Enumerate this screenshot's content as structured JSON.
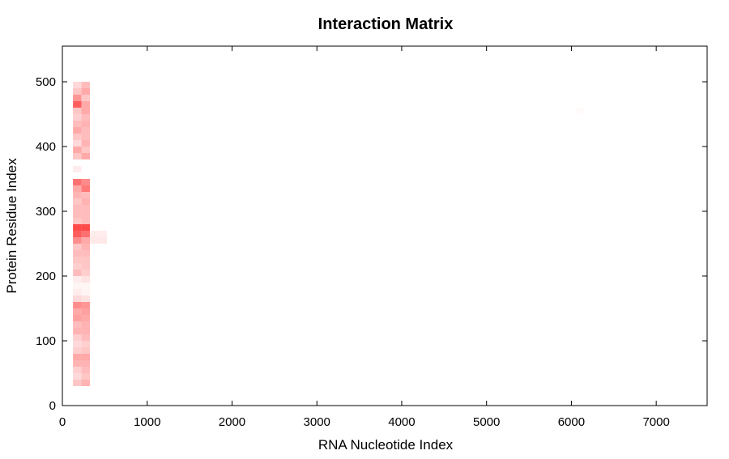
{
  "chart_data": {
    "type": "heatmap",
    "title": "Interaction Matrix",
    "xlabel": "RNA Nucleotide Index",
    "ylabel": "Protein Residue Index",
    "xlim": [
      0,
      7600
    ],
    "ylim": [
      0,
      555
    ],
    "xticks": [
      0,
      1000,
      2000,
      3000,
      4000,
      5000,
      6000,
      7000
    ],
    "yticks": [
      0,
      100,
      200,
      300,
      400,
      500
    ],
    "color_scale": {
      "low": "#ffffff",
      "high": "#ff4040"
    },
    "grid": false,
    "legend": "none",
    "cell_size": {
      "x": 100,
      "y": 10
    },
    "cells": [
      {
        "x": 175,
        "y": 495,
        "v": 0.2
      },
      {
        "x": 275,
        "y": 495,
        "v": 0.35
      },
      {
        "x": 175,
        "y": 485,
        "v": 0.3
      },
      {
        "x": 275,
        "y": 485,
        "v": 0.45
      },
      {
        "x": 175,
        "y": 475,
        "v": 0.55
      },
      {
        "x": 275,
        "y": 475,
        "v": 0.3
      },
      {
        "x": 175,
        "y": 465,
        "v": 0.85
      },
      {
        "x": 275,
        "y": 465,
        "v": 0.45
      },
      {
        "x": 175,
        "y": 455,
        "v": 0.3
      },
      {
        "x": 275,
        "y": 455,
        "v": 0.45
      },
      {
        "x": 175,
        "y": 445,
        "v": 0.25
      },
      {
        "x": 275,
        "y": 445,
        "v": 0.35
      },
      {
        "x": 175,
        "y": 435,
        "v": 0.35
      },
      {
        "x": 275,
        "y": 435,
        "v": 0.4
      },
      {
        "x": 175,
        "y": 425,
        "v": 0.45
      },
      {
        "x": 275,
        "y": 425,
        "v": 0.35
      },
      {
        "x": 175,
        "y": 415,
        "v": 0.3
      },
      {
        "x": 275,
        "y": 415,
        "v": 0.35
      },
      {
        "x": 175,
        "y": 405,
        "v": 0.2
      },
      {
        "x": 275,
        "y": 405,
        "v": 0.4
      },
      {
        "x": 175,
        "y": 395,
        "v": 0.45
      },
      {
        "x": 275,
        "y": 395,
        "v": 0.3
      },
      {
        "x": 175,
        "y": 385,
        "v": 0.3
      },
      {
        "x": 275,
        "y": 385,
        "v": 0.45
      },
      {
        "x": 175,
        "y": 365,
        "v": 0.1
      },
      {
        "x": 175,
        "y": 345,
        "v": 0.75
      },
      {
        "x": 275,
        "y": 345,
        "v": 0.6
      },
      {
        "x": 175,
        "y": 335,
        "v": 0.45
      },
      {
        "x": 275,
        "y": 335,
        "v": 0.7
      },
      {
        "x": 175,
        "y": 325,
        "v": 0.4
      },
      {
        "x": 275,
        "y": 325,
        "v": 0.35
      },
      {
        "x": 175,
        "y": 315,
        "v": 0.3
      },
      {
        "x": 275,
        "y": 315,
        "v": 0.4
      },
      {
        "x": 175,
        "y": 305,
        "v": 0.35
      },
      {
        "x": 275,
        "y": 305,
        "v": 0.35
      },
      {
        "x": 175,
        "y": 295,
        "v": 0.35
      },
      {
        "x": 275,
        "y": 295,
        "v": 0.35
      },
      {
        "x": 175,
        "y": 285,
        "v": 0.3
      },
      {
        "x": 275,
        "y": 285,
        "v": 0.35
      },
      {
        "x": 175,
        "y": 275,
        "v": 0.95
      },
      {
        "x": 275,
        "y": 275,
        "v": 0.95
      },
      {
        "x": 175,
        "y": 265,
        "v": 0.85
      },
      {
        "x": 275,
        "y": 265,
        "v": 0.75
      },
      {
        "x": 175,
        "y": 255,
        "v": 0.6
      },
      {
        "x": 275,
        "y": 255,
        "v": 0.45
      },
      {
        "x": 375,
        "y": 265,
        "v": 0.1
      },
      {
        "x": 475,
        "y": 265,
        "v": 0.1
      },
      {
        "x": 375,
        "y": 255,
        "v": 0.12
      },
      {
        "x": 475,
        "y": 255,
        "v": 0.12
      },
      {
        "x": 175,
        "y": 245,
        "v": 0.3
      },
      {
        "x": 275,
        "y": 245,
        "v": 0.4
      },
      {
        "x": 175,
        "y": 235,
        "v": 0.35
      },
      {
        "x": 275,
        "y": 235,
        "v": 0.35
      },
      {
        "x": 175,
        "y": 225,
        "v": 0.3
      },
      {
        "x": 275,
        "y": 225,
        "v": 0.3
      },
      {
        "x": 175,
        "y": 215,
        "v": 0.25
      },
      {
        "x": 275,
        "y": 215,
        "v": 0.3
      },
      {
        "x": 175,
        "y": 205,
        "v": 0.35
      },
      {
        "x": 275,
        "y": 205,
        "v": 0.25
      },
      {
        "x": 175,
        "y": 195,
        "v": 0.1
      },
      {
        "x": 275,
        "y": 195,
        "v": 0.15
      },
      {
        "x": 175,
        "y": 185,
        "v": 0.05
      },
      {
        "x": 275,
        "y": 185,
        "v": 0.05
      },
      {
        "x": 175,
        "y": 175,
        "v": 0.1
      },
      {
        "x": 275,
        "y": 175,
        "v": 0.05
      },
      {
        "x": 175,
        "y": 165,
        "v": 0.2
      },
      {
        "x": 275,
        "y": 165,
        "v": 0.15
      },
      {
        "x": 175,
        "y": 155,
        "v": 0.6
      },
      {
        "x": 275,
        "y": 155,
        "v": 0.55
      },
      {
        "x": 175,
        "y": 145,
        "v": 0.45
      },
      {
        "x": 275,
        "y": 145,
        "v": 0.5
      },
      {
        "x": 175,
        "y": 135,
        "v": 0.5
      },
      {
        "x": 275,
        "y": 135,
        "v": 0.45
      },
      {
        "x": 175,
        "y": 125,
        "v": 0.35
      },
      {
        "x": 275,
        "y": 125,
        "v": 0.4
      },
      {
        "x": 175,
        "y": 115,
        "v": 0.4
      },
      {
        "x": 275,
        "y": 115,
        "v": 0.4
      },
      {
        "x": 175,
        "y": 105,
        "v": 0.25
      },
      {
        "x": 275,
        "y": 105,
        "v": 0.35
      },
      {
        "x": 175,
        "y": 95,
        "v": 0.2
      },
      {
        "x": 275,
        "y": 95,
        "v": 0.25
      },
      {
        "x": 175,
        "y": 85,
        "v": 0.25
      },
      {
        "x": 275,
        "y": 85,
        "v": 0.3
      },
      {
        "x": 175,
        "y": 75,
        "v": 0.45
      },
      {
        "x": 275,
        "y": 75,
        "v": 0.45
      },
      {
        "x": 175,
        "y": 65,
        "v": 0.4
      },
      {
        "x": 275,
        "y": 65,
        "v": 0.4
      },
      {
        "x": 175,
        "y": 55,
        "v": 0.25
      },
      {
        "x": 275,
        "y": 55,
        "v": 0.35
      },
      {
        "x": 175,
        "y": 45,
        "v": 0.2
      },
      {
        "x": 275,
        "y": 45,
        "v": 0.3
      },
      {
        "x": 175,
        "y": 35,
        "v": 0.3
      },
      {
        "x": 275,
        "y": 35,
        "v": 0.4
      },
      {
        "x": 6100,
        "y": 455,
        "v": 0.02
      }
    ]
  }
}
